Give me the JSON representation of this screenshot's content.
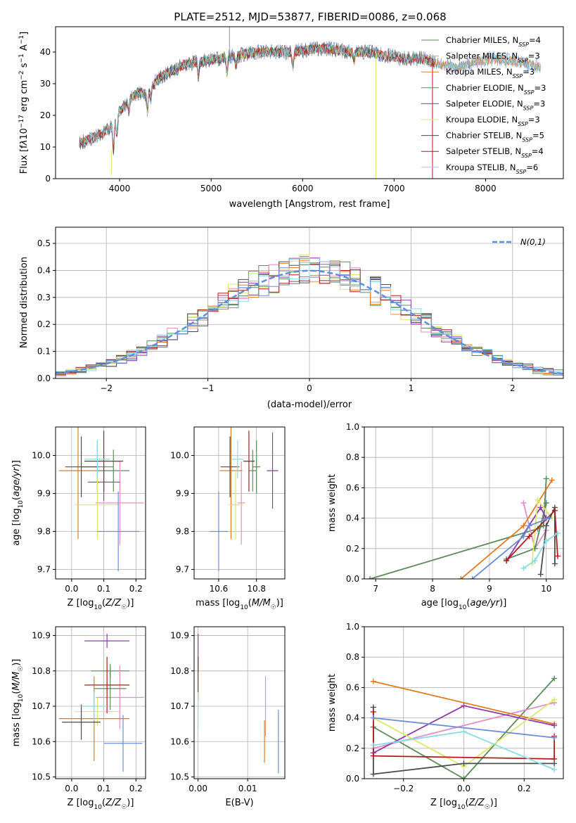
{
  "figure": {
    "title": "PLATE=2512, MJD=53877, FIBERID=0086, z=0.068"
  },
  "colors": {
    "Chabrier MILES": "#5b8a5b",
    "Salpeter MILES": "#e08fc7",
    "Kroupa MILES": "#e07b22",
    "Chabrier ELODIE": "#5b8a5b",
    "Salpeter ELODIE": "#8e3aa8",
    "Kroupa ELODIE": "#dfe66a",
    "Chabrier STELIB": "#4d4d4d",
    "Salpeter STELIB": "#b01c1c",
    "Kroupa STELIB": "#88dbe3",
    "data": "#6b8ed6"
  },
  "chart_data": [
    {
      "id": "spectrum",
      "type": "line",
      "xlabel": "wavelength [Angstrom, rest frame]",
      "ylabel": "Flux [f_λ10^-17 erg cm^-2 s^-1 A^-1]",
      "xlim": [
        3300,
        8850
      ],
      "ylim": [
        0,
        48
      ],
      "xticks": [
        4000,
        5000,
        6000,
        7000,
        8000
      ],
      "yticks": [
        0,
        10,
        20,
        30,
        40
      ],
      "legend_position": "upper right",
      "legend": [
        {
          "label": "Chabrier MILES, N",
          "sub": "SSP",
          "tail": "=4",
          "key": "Chabrier MILES"
        },
        {
          "label": "Salpeter MILES, N",
          "sub": "SSP",
          "tail": "=3",
          "key": "Salpeter MILES"
        },
        {
          "label": "Kroupa MILES, N",
          "sub": "SSP",
          "tail": "=3",
          "key": "Kroupa MILES"
        },
        {
          "label": "Chabrier ELODIE, N",
          "sub": "SSP",
          "tail": "=3",
          "key": "Chabrier ELODIE"
        },
        {
          "label": "Salpeter ELODIE, N",
          "sub": "SSP",
          "tail": "=3",
          "key": "Salpeter ELODIE"
        },
        {
          "label": "Kroupa ELODIE, N",
          "sub": "SSP",
          "tail": "=3",
          "key": "Kroupa ELODIE"
        },
        {
          "label": "Chabrier STELIB, N",
          "sub": "SSP",
          "tail": "=5",
          "key": "Chabrier STELIB"
        },
        {
          "label": "Salpeter STELIB, N",
          "sub": "SSP",
          "tail": "=4",
          "key": "Salpeter STELIB"
        },
        {
          "label": "Kroupa STELIB, N",
          "sub": "SSP",
          "tail": "=6",
          "key": "Kroupa STELIB"
        }
      ],
      "continuum": [
        [
          3560,
          11
        ],
        [
          3700,
          13
        ],
        [
          3800,
          14
        ],
        [
          3900,
          16
        ],
        [
          4000,
          21
        ],
        [
          4100,
          25
        ],
        [
          4200,
          27
        ],
        [
          4300,
          27
        ],
        [
          4400,
          31
        ],
        [
          4500,
          33
        ],
        [
          4700,
          36
        ],
        [
          4900,
          37
        ],
        [
          5100,
          38
        ],
        [
          5300,
          39
        ],
        [
          5500,
          40
        ],
        [
          5700,
          40
        ],
        [
          5900,
          40
        ],
        [
          6100,
          41
        ],
        [
          6300,
          41
        ],
        [
          6500,
          40
        ],
        [
          6700,
          40
        ],
        [
          6900,
          39
        ],
        [
          7100,
          38
        ],
        [
          7300,
          38
        ],
        [
          7500,
          36
        ],
        [
          7700,
          35
        ],
        [
          7900,
          37
        ],
        [
          8100,
          38
        ],
        [
          8300,
          37
        ],
        [
          8500,
          36
        ],
        [
          8600,
          35
        ]
      ],
      "features": [
        [
          3934,
          -8
        ],
        [
          3969,
          -6
        ],
        [
          4101,
          -4
        ],
        [
          4304,
          -6
        ],
        [
          4340,
          -3
        ],
        [
          4861,
          -4
        ],
        [
          5175,
          -5
        ],
        [
          5270,
          -3
        ],
        [
          5893,
          -5
        ],
        [
          6563,
          -3
        ]
      ]
    },
    {
      "id": "residuals",
      "type": "step",
      "xlabel": "(data-model)/error",
      "ylabel": "Normed distribution",
      "xlim": [
        -2.5,
        2.5
      ],
      "ylim": [
        0,
        0.56
      ],
      "xticks": [
        -2,
        -1,
        0,
        1,
        2
      ],
      "yticks": [
        0.0,
        0.1,
        0.2,
        0.3,
        0.4,
        0.5
      ],
      "legend_position": "upper right",
      "normal_label": "N(0,1)",
      "bin_width": 0.1
    },
    {
      "id": "age_vs_Z",
      "type": "errorbar",
      "xlabel": "Z [log10(Z/Z☉)]",
      "ylabel": "age [log10(age/yr)]",
      "xlim": [
        -0.05,
        0.23
      ],
      "ylim": [
        9.675,
        10.075
      ],
      "xticks": [
        0.0,
        0.1,
        0.2
      ],
      "yticks": [
        9.7,
        9.8,
        9.9,
        10.0
      ],
      "points": [
        {
          "key": "Chabrier MILES",
          "x": 0.13,
          "y": 9.96,
          "xe": 0.05,
          "ye": 0.055
        },
        {
          "key": "Salpeter MILES",
          "x": 0.15,
          "y": 9.875,
          "xe": 0.075,
          "ye": 0.11
        },
        {
          "key": "Kroupa MILES",
          "x": 0.02,
          "y": 9.96,
          "xe": 0.06,
          "ye": 0.18
        },
        {
          "key": "Chabrier ELODIE",
          "x": 0.08,
          "y": 9.97,
          "xe": 0.05,
          "ye": 0.07
        },
        {
          "key": "Salpeter ELODIE",
          "x": 0.1,
          "y": 9.93,
          "xe": 0.05,
          "ye": 0.05
        },
        {
          "key": "Kroupa ELODIE",
          "x": 0.08,
          "y": 9.87,
          "xe": 0.07,
          "ye": 0.09
        },
        {
          "key": "Chabrier STELIB",
          "x": 0.03,
          "y": 9.97,
          "xe": 0.05,
          "ye": 0.08
        },
        {
          "key": "Salpeter STELIB",
          "x": 0.1,
          "y": 9.985,
          "xe": 0.06,
          "ye": 0.08
        },
        {
          "key": "Kroupa STELIB",
          "x": 0.08,
          "y": 9.99,
          "xe": 0.04,
          "ye": 0.05
        },
        {
          "key": "data",
          "x": 0.145,
          "y": 9.8,
          "xe": 0.065,
          "ye": 0.105
        }
      ]
    },
    {
      "id": "age_vs_mass",
      "type": "errorbar",
      "xlabel": "mass [log10(M/M☉)]",
      "ylabel": "",
      "xlim": [
        10.47,
        10.95
      ],
      "ylim": [
        9.675,
        10.075
      ],
      "xticks": [
        10.6,
        10.8
      ],
      "yticks": [
        9.7,
        9.8,
        9.9,
        10.0
      ],
      "points": [
        {
          "key": "Chabrier MILES",
          "x": 10.78,
          "y": 9.96,
          "xe": 0.02,
          "ye": 0.055
        },
        {
          "key": "Salpeter MILES",
          "x": 10.72,
          "y": 9.875,
          "xe": 0.02,
          "ye": 0.11
        },
        {
          "key": "Kroupa MILES",
          "x": 10.665,
          "y": 9.96,
          "xe": 0.06,
          "ye": 0.18
        },
        {
          "key": "Chabrier ELODIE",
          "x": 10.8,
          "y": 9.97,
          "xe": 0.02,
          "ye": 0.07
        },
        {
          "key": "Salpeter ELODIE",
          "x": 10.885,
          "y": 9.96,
          "xe": 0.03,
          "ye": 0.1
        },
        {
          "key": "Kroupa ELODIE",
          "x": 10.69,
          "y": 9.87,
          "xe": 0.04,
          "ye": 0.09
        },
        {
          "key": "Chabrier STELIB",
          "x": 10.66,
          "y": 9.97,
          "xe": 0.05,
          "ye": 0.08
        },
        {
          "key": "Salpeter STELIB",
          "x": 10.76,
          "y": 9.985,
          "xe": 0.03,
          "ye": 0.08
        },
        {
          "key": "Kroupa STELIB",
          "x": 10.7,
          "y": 9.99,
          "xe": 0.03,
          "ye": 0.05
        },
        {
          "key": "data",
          "x": 10.6,
          "y": 9.8,
          "xe": 0.05,
          "ye": 0.105
        }
      ]
    },
    {
      "id": "weight_vs_age",
      "type": "line",
      "xlabel": "age [log10(age/yr)]",
      "ylabel": "mass weight",
      "xlim": [
        6.8,
        10.3
      ],
      "ylim": [
        0,
        1.0
      ],
      "xticks": [
        7,
        8,
        9,
        10
      ],
      "yticks": [
        0.0,
        0.2,
        0.4,
        0.6,
        0.8,
        1.0
      ],
      "series": [
        {
          "key": "Chabrier MILES",
          "x": [
            6.9,
            9.85,
            9.95,
            10.0
          ],
          "y": [
            0.0,
            0.33,
            0.35,
            0.66
          ]
        },
        {
          "key": "Salpeter MILES",
          "x": [
            9.6,
            9.8,
            10.0
          ],
          "y": [
            0.5,
            0.2,
            0.32
          ]
        },
        {
          "key": "Kroupa MILES",
          "x": [
            8.5,
            9.6,
            10.1
          ],
          "y": [
            0.0,
            0.35,
            0.65
          ]
        },
        {
          "key": "Chabrier ELODIE",
          "x": [
            9.3,
            9.8,
            10.0
          ],
          "y": [
            0.13,
            0.2,
            0.5
          ]
        },
        {
          "key": "Salpeter ELODIE",
          "x": [
            9.3,
            9.9,
            10.0
          ],
          "y": [
            0.12,
            0.47,
            0.4
          ]
        },
        {
          "key": "Kroupa ELODIE",
          "x": [
            9.75,
            9.85,
            10.1
          ],
          "y": [
            0.1,
            0.52,
            0.4
          ]
        },
        {
          "key": "Chabrier STELIB",
          "x": [
            9.9,
            10.0,
            10.15,
            10.15
          ],
          "y": [
            0.03,
            0.35,
            0.47,
            0.1
          ]
        },
        {
          "key": "Salpeter STELIB",
          "x": [
            9.3,
            9.7,
            10.15,
            10.2
          ],
          "y": [
            0.12,
            0.28,
            0.45,
            0.15
          ]
        },
        {
          "key": "Kroupa STELIB",
          "x": [
            9.6,
            9.8,
            10.0,
            10.2
          ],
          "y": [
            0.07,
            0.12,
            0.25,
            0.3
          ]
        },
        {
          "key": "data",
          "x": [
            8.7,
            9.6,
            9.7,
            10.05
          ],
          "y": [
            0.0,
            0.28,
            0.35,
            0.4
          ]
        }
      ]
    },
    {
      "id": "mass_vs_Z",
      "type": "errorbar",
      "xlabel": "Z [log10(Z/Z☉)]",
      "ylabel": "mass [log10(M/M☉)]",
      "xlim": [
        -0.05,
        0.23
      ],
      "ylim": [
        10.495,
        10.925
      ],
      "xticks": [
        0.0,
        0.1,
        0.2
      ],
      "yticks": [
        10.5,
        10.6,
        10.7,
        10.8,
        10.9
      ],
      "points": [
        {
          "key": "Chabrier MILES",
          "x": 0.12,
          "y": 10.8,
          "xe": 0.06,
          "ye": 0.02
        },
        {
          "key": "Salpeter MILES",
          "x": 0.15,
          "y": 10.725,
          "xe": 0.075,
          "ye": 0.09
        },
        {
          "key": "Kroupa MILES",
          "x": 0.07,
          "y": 10.665,
          "xe": 0.11,
          "ye": 0.12
        },
        {
          "key": "Chabrier ELODIE",
          "x": 0.12,
          "y": 10.75,
          "xe": 0.05,
          "ye": 0.06
        },
        {
          "key": "Salpeter ELODIE",
          "x": 0.11,
          "y": 10.885,
          "xe": 0.07,
          "ye": 0.02
        },
        {
          "key": "Kroupa ELODIE",
          "x": 0.08,
          "y": 10.685,
          "xe": 0.07,
          "ye": 0.04
        },
        {
          "key": "Chabrier STELIB",
          "x": 0.03,
          "y": 10.655,
          "xe": 0.06,
          "ye": 0.05
        },
        {
          "key": "Salpeter STELIB",
          "x": 0.11,
          "y": 10.76,
          "xe": 0.07,
          "ye": 0.08
        },
        {
          "key": "Kroupa STELIB",
          "x": 0.07,
          "y": 10.7,
          "xe": 0.04,
          "ye": 0.04
        },
        {
          "key": "data",
          "x": 0.16,
          "y": 10.595,
          "xe": 0.06,
          "ye": 0.08
        }
      ]
    },
    {
      "id": "mass_vs_ebv",
      "type": "errorbar",
      "xlabel": "E(B-V)",
      "ylabel": "",
      "xlim": [
        -0.0008,
        0.0175
      ],
      "ylim": [
        10.495,
        10.925
      ],
      "xticks": [
        0.0,
        0.01
      ],
      "yticks": [
        10.5,
        10.6,
        10.7,
        10.8,
        10.9
      ],
      "points": [
        {
          "key": "Salpeter MILES",
          "x": 0.0136,
          "y": 10.7,
          "xe": 0,
          "ye": 0.085
        },
        {
          "key": "Kroupa MILES",
          "x": 0.0134,
          "y": 10.6,
          "xe": 0,
          "ye": 0.06
        },
        {
          "key": "Salpeter ELODIE",
          "x": 0.0,
          "y": 10.85,
          "xe": 0,
          "ye": 0.055
        },
        {
          "key": "Salpeter STELIB",
          "x": 0.0,
          "y": 10.78,
          "xe": 0,
          "ye": 0.06
        },
        {
          "key": "Kroupa STELIB",
          "x": 0.0,
          "y": 10.69,
          "xe": 0,
          "ye": 0.05
        },
        {
          "key": "data",
          "x": 0.0162,
          "y": 10.6,
          "xe": 0,
          "ye": 0.09
        }
      ]
    },
    {
      "id": "weight_vs_Z",
      "type": "line",
      "xlabel": "Z [log10(Z/Z☉)]",
      "ylabel": "mass weight",
      "xlim": [
        -0.33,
        0.33
      ],
      "ylim": [
        0,
        1.0
      ],
      "xticks": [
        -0.2,
        0.0,
        0.2
      ],
      "yticks": [
        0.0,
        0.2,
        0.4,
        0.6,
        0.8,
        1.0
      ],
      "series": [
        {
          "key": "Chabrier MILES",
          "x": [
            -0.3,
            0.0,
            0.3
          ],
          "y": [
            0.34,
            0.0,
            0.66
          ]
        },
        {
          "key": "Salpeter MILES",
          "x": [
            -0.3,
            0.3
          ],
          "y": [
            0.2,
            0.5
          ]
        },
        {
          "key": "Kroupa MILES",
          "x": [
            -0.3,
            0.3
          ],
          "y": [
            0.64,
            0.36
          ]
        },
        {
          "key": "Salpeter ELODIE",
          "x": [
            -0.3,
            0.0,
            0.3
          ],
          "y": [
            0.17,
            0.48,
            0.35
          ]
        },
        {
          "key": "Kroupa ELODIE",
          "x": [
            -0.3,
            0.0,
            0.3
          ],
          "y": [
            0.4,
            0.08,
            0.52
          ]
        },
        {
          "key": "Chabrier STELIB",
          "x": [
            -0.3,
            -0.3,
            0.0,
            0.3
          ],
          "y": [
            0.47,
            0.03,
            0.1,
            0.1
          ]
        },
        {
          "key": "Salpeter STELIB",
          "x": [
            -0.3,
            -0.3,
            0.3,
            0.3
          ],
          "y": [
            0.44,
            0.15,
            0.13,
            0.28
          ]
        },
        {
          "key": "Kroupa STELIB",
          "x": [
            -0.3,
            0.0,
            0.3
          ],
          "y": [
            0.22,
            0.31,
            0.06
          ]
        },
        {
          "key": "data",
          "x": [
            -0.3,
            0.3
          ],
          "y": [
            0.4,
            0.27
          ]
        }
      ]
    }
  ]
}
